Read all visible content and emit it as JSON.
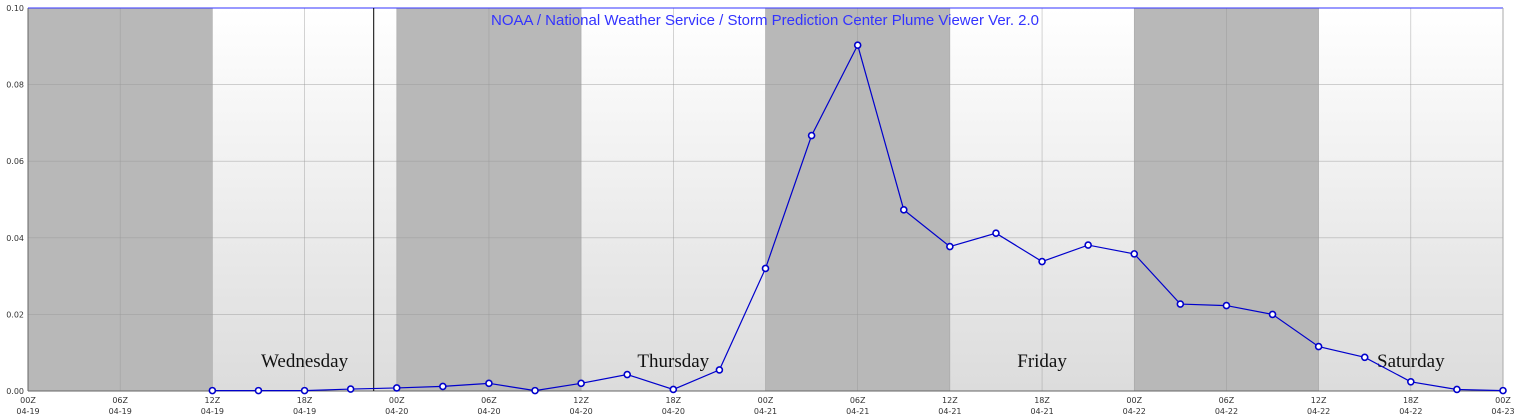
{
  "chart_data": {
    "type": "line",
    "title": "NOAA / National Weather Service / Storm Prediction Center Plume Viewer Ver. 2.0",
    "xlabel": "",
    "ylabel": "",
    "ylim": [
      0,
      0.1
    ],
    "y_ticks": [
      "0.00",
      "0.02",
      "0.04",
      "0.06",
      "0.08",
      "0.10"
    ],
    "x_ticks": [
      {
        "hour": "00Z",
        "date": "04-19"
      },
      {
        "hour": "06Z",
        "date": "04-19"
      },
      {
        "hour": "12Z",
        "date": "04-19"
      },
      {
        "hour": "18Z",
        "date": "04-19"
      },
      {
        "hour": "00Z",
        "date": "04-20"
      },
      {
        "hour": "06Z",
        "date": "04-20"
      },
      {
        "hour": "12Z",
        "date": "04-20"
      },
      {
        "hour": "18Z",
        "date": "04-20"
      },
      {
        "hour": "00Z",
        "date": "04-21"
      },
      {
        "hour": "06Z",
        "date": "04-21"
      },
      {
        "hour": "12Z",
        "date": "04-21"
      },
      {
        "hour": "18Z",
        "date": "04-21"
      },
      {
        "hour": "00Z",
        "date": "04-22"
      },
      {
        "hour": "06Z",
        "date": "04-22"
      },
      {
        "hour": "12Z",
        "date": "04-22"
      },
      {
        "hour": "18Z",
        "date": "04-22"
      },
      {
        "hour": "00Z",
        "date": "04-23"
      }
    ],
    "x_range_hours": [
      0,
      96
    ],
    "day_labels": [
      {
        "text": "Wednesday",
        "hour": 18
      },
      {
        "text": "Thursday",
        "hour": 42
      },
      {
        "text": "Friday",
        "hour": 66
      },
      {
        "text": "Saturday",
        "hour": 90
      }
    ],
    "shaded_periods_hours": [
      [
        0,
        12
      ],
      [
        24,
        36
      ],
      [
        48,
        60
      ],
      [
        72,
        84
      ]
    ],
    "current_time_hour": 22.5,
    "series": [
      {
        "color": "#0000cc",
        "x_hours": [
          12,
          15,
          18,
          21,
          24,
          27,
          30,
          33,
          36,
          39,
          42,
          45,
          48,
          51,
          54,
          57,
          60,
          63,
          66,
          69,
          72,
          75,
          78,
          81,
          84,
          87,
          90,
          93,
          96
        ],
        "values": [
          0.0001,
          0.0001,
          0.0001,
          0.0005,
          0.0008,
          0.0012,
          0.002,
          0.0001,
          0.002,
          0.0043,
          0.0004,
          0.0055,
          0.032,
          0.0667,
          0.0903,
          0.0473,
          0.0377,
          0.0412,
          0.0338,
          0.0381,
          0.0358,
          0.0227,
          0.0223,
          0.02,
          0.0116,
          0.0088,
          0.0024,
          0.0004,
          0.0001
        ]
      }
    ],
    "grid": true,
    "colors": {
      "title": "#3333ff",
      "line": "#0000cc",
      "night_shade": "#b8b8b8",
      "grid": "#999999",
      "plot_gradient_top": "#ffffff",
      "plot_gradient_bottom": "#dcdcdc"
    }
  }
}
